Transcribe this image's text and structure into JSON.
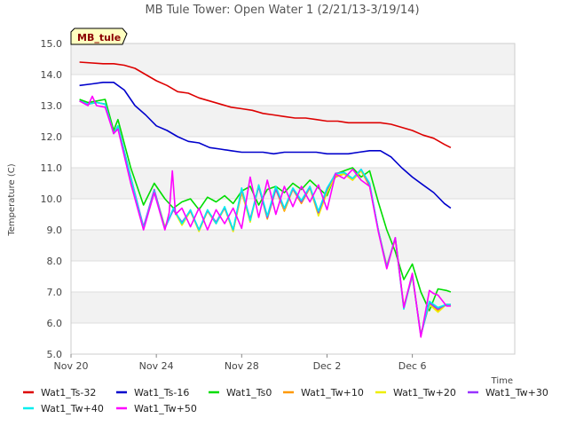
{
  "chart_data": {
    "type": "line",
    "title": "MB Tule Tower: Open Water 1 (2/21/13-3/19/14)",
    "xlabel": "Time",
    "ylabel": "Temperature (C)",
    "tag": "MB_tule",
    "ylim": [
      5.0,
      15.0
    ],
    "xlim": [
      0,
      20.8
    ],
    "yticks": [
      5.0,
      6.0,
      7.0,
      8.0,
      9.0,
      10.0,
      11.0,
      12.0,
      13.0,
      14.0,
      15.0
    ],
    "yticklabels": [
      "5.0",
      "6.0",
      "7.0",
      "8.0",
      "9.0",
      "10.0",
      "11.0",
      "12.0",
      "13.0",
      "14.0",
      "15.0"
    ],
    "xticks": [
      0,
      4,
      8,
      12,
      16
    ],
    "xticklabels": [
      "Nov 20",
      "Nov 24",
      "Nov 28",
      "Dec 2",
      "Dec 6"
    ],
    "grid": true,
    "legend_position": "bottom",
    "series": [
      {
        "name": "Wat1_Ts-32",
        "color": "#dd0000",
        "x": [
          0.4,
          1.5,
          2.0,
          2.5,
          3.0,
          3.5,
          4.0,
          4.5,
          5.0,
          5.5,
          6.0,
          6.5,
          7.0,
          7.5,
          8.0,
          8.5,
          9.0,
          9.5,
          10.0,
          10.5,
          11.0,
          11.5,
          12.0,
          12.5,
          13.0,
          13.5,
          14.0,
          14.5,
          15.0,
          15.5,
          16.0,
          16.5,
          17.0,
          17.5,
          17.8
        ],
        "values": [
          14.4,
          14.35,
          14.35,
          14.3,
          14.2,
          14.0,
          13.8,
          13.65,
          13.45,
          13.4,
          13.25,
          13.15,
          13.05,
          12.95,
          12.9,
          12.85,
          12.75,
          12.7,
          12.65,
          12.6,
          12.6,
          12.55,
          12.5,
          12.5,
          12.45,
          12.45,
          12.45,
          12.45,
          12.4,
          12.3,
          12.2,
          12.05,
          11.95,
          11.75,
          11.65
        ]
      },
      {
        "name": "Wat1_Ts-16",
        "color": "#0000cc",
        "x": [
          0.4,
          1.0,
          1.5,
          2.0,
          2.5,
          3.0,
          3.5,
          4.0,
          4.5,
          5.0,
          5.5,
          6.0,
          6.5,
          7.0,
          7.5,
          8.0,
          8.5,
          9.0,
          9.5,
          10.0,
          10.5,
          11.0,
          11.5,
          12.0,
          12.5,
          13.0,
          13.5,
          14.0,
          14.5,
          15.0,
          15.5,
          16.0,
          16.5,
          17.0,
          17.5,
          17.8
        ],
        "values": [
          13.65,
          13.7,
          13.75,
          13.75,
          13.5,
          13.0,
          12.7,
          12.35,
          12.2,
          12.0,
          11.85,
          11.8,
          11.65,
          11.6,
          11.55,
          11.5,
          11.5,
          11.5,
          11.45,
          11.5,
          11.5,
          11.5,
          11.5,
          11.45,
          11.45,
          11.45,
          11.5,
          11.55,
          11.55,
          11.35,
          11.0,
          10.7,
          10.45,
          10.2,
          9.85,
          9.7
        ]
      },
      {
        "name": "Wat1_Ts0",
        "color": "#00dd00",
        "x": [
          0.4,
          0.8,
          1.2,
          1.6,
          2.0,
          2.2,
          2.8,
          3.4,
          3.9,
          4.4,
          4.8,
          5.2,
          5.6,
          6.0,
          6.4,
          6.8,
          7.2,
          7.6,
          8.0,
          8.4,
          8.8,
          9.2,
          9.6,
          10.0,
          10.4,
          10.8,
          11.2,
          11.6,
          12.0,
          12.4,
          12.8,
          13.2,
          13.6,
          14.0,
          14.4,
          14.8,
          15.2,
          15.6,
          16.0,
          16.4,
          16.8,
          17.2,
          17.6,
          17.8
        ],
        "values": [
          13.2,
          13.1,
          13.15,
          13.2,
          12.2,
          12.55,
          11.0,
          9.8,
          10.5,
          10.0,
          9.7,
          9.9,
          10.0,
          9.65,
          10.05,
          9.9,
          10.1,
          9.85,
          10.25,
          10.4,
          9.8,
          10.3,
          10.4,
          10.2,
          10.5,
          10.3,
          10.6,
          10.35,
          10.1,
          10.8,
          10.9,
          11.0,
          10.7,
          10.9,
          9.9,
          9.0,
          8.3,
          7.4,
          7.9,
          7.0,
          6.4,
          7.1,
          7.05,
          7.0
        ]
      },
      {
        "name": "Wat1_Tw+10",
        "color": "#ff9900",
        "x": [
          0.4,
          0.8,
          1.2,
          1.6,
          2.0,
          2.2,
          2.8,
          3.4,
          3.9,
          4.4,
          4.8,
          5.2,
          5.6,
          6.0,
          6.4,
          6.8,
          7.2,
          7.6,
          8.0,
          8.4,
          8.8,
          9.2,
          9.6,
          10.0,
          10.4,
          10.8,
          11.2,
          11.6,
          12.0,
          12.4,
          12.8,
          13.2,
          13.6,
          14.0,
          14.4,
          14.8,
          15.2,
          15.6,
          16.0,
          16.4,
          16.8,
          17.2,
          17.6,
          17.8
        ],
        "values": [
          13.15,
          13.05,
          13.1,
          13.05,
          12.1,
          12.35,
          10.7,
          9.05,
          10.25,
          9.1,
          9.65,
          9.2,
          9.6,
          9.0,
          9.6,
          9.2,
          9.7,
          8.95,
          10.2,
          9.3,
          10.4,
          9.35,
          10.3,
          9.6,
          10.3,
          9.85,
          10.35,
          9.5,
          10.25,
          10.7,
          10.8,
          10.6,
          10.9,
          10.4,
          9.0,
          7.85,
          8.7,
          6.5,
          7.5,
          5.65,
          6.6,
          6.4,
          6.6,
          6.55
        ]
      },
      {
        "name": "Wat1_Tw+20",
        "color": "#eeee00",
        "x": [
          0.4,
          0.8,
          1.2,
          1.6,
          2.0,
          2.2,
          2.8,
          3.4,
          3.9,
          4.4,
          4.8,
          5.2,
          5.6,
          6.0,
          6.4,
          6.8,
          7.2,
          7.6,
          8.0,
          8.4,
          8.8,
          9.2,
          9.6,
          10.0,
          10.4,
          10.8,
          11.2,
          11.6,
          12.0,
          12.4,
          12.8,
          13.2,
          13.6,
          14.0,
          14.4,
          14.8,
          15.2,
          15.6,
          16.0,
          16.4,
          16.8,
          17.2,
          17.6,
          17.8
        ],
        "values": [
          13.15,
          13.05,
          13.1,
          13.05,
          12.1,
          12.35,
          10.7,
          9.08,
          10.28,
          9.1,
          9.65,
          9.15,
          9.6,
          8.95,
          9.6,
          9.25,
          9.7,
          8.95,
          10.25,
          9.25,
          10.45,
          9.4,
          10.35,
          9.65,
          10.3,
          9.9,
          10.35,
          9.45,
          10.2,
          10.75,
          10.8,
          10.6,
          10.9,
          10.45,
          9.0,
          7.8,
          8.72,
          6.55,
          7.52,
          5.62,
          6.6,
          6.35,
          6.6,
          6.55
        ]
      },
      {
        "name": "Wat1_Tw+30",
        "color": "#9933ff",
        "x": [
          0.4,
          0.8,
          1.2,
          1.6,
          2.0,
          2.2,
          2.8,
          3.4,
          3.9,
          4.4,
          4.8,
          5.2,
          5.6,
          6.0,
          6.4,
          6.8,
          7.2,
          7.6,
          8.0,
          8.4,
          8.8,
          9.2,
          9.6,
          10.0,
          10.4,
          10.8,
          11.2,
          11.6,
          12.0,
          12.4,
          12.8,
          13.2,
          13.6,
          14.0,
          14.4,
          14.8,
          15.2,
          15.6,
          16.0,
          16.4,
          16.8,
          17.2,
          17.6,
          17.8
        ],
        "values": [
          13.15,
          13.05,
          13.1,
          13.05,
          12.1,
          12.35,
          10.7,
          9.1,
          10.3,
          9.05,
          9.65,
          9.25,
          9.62,
          9.0,
          9.62,
          9.25,
          9.72,
          9.0,
          10.3,
          9.35,
          10.4,
          9.4,
          10.32,
          9.68,
          10.32,
          9.9,
          10.38,
          9.55,
          10.3,
          10.82,
          10.85,
          10.65,
          10.95,
          10.45,
          9.0,
          7.8,
          8.75,
          6.5,
          7.55,
          5.6,
          6.65,
          6.45,
          6.6,
          6.6
        ]
      },
      {
        "name": "Wat1_Tw+40",
        "color": "#00eeee",
        "x": [
          0.4,
          0.8,
          1.2,
          1.6,
          2.0,
          2.2,
          2.8,
          3.4,
          3.9,
          4.4,
          4.8,
          5.2,
          5.6,
          6.0,
          6.4,
          6.8,
          7.2,
          7.6,
          8.0,
          8.4,
          8.8,
          9.2,
          9.6,
          10.0,
          10.4,
          10.8,
          11.2,
          11.6,
          12.0,
          12.4,
          12.8,
          13.2,
          13.6,
          14.0,
          14.4,
          14.8,
          15.2,
          15.6,
          16.0,
          16.4,
          16.8,
          17.2,
          17.6,
          17.8
        ],
        "values": [
          13.15,
          13.05,
          13.1,
          13.05,
          12.1,
          12.35,
          10.7,
          9.05,
          10.25,
          9.05,
          9.7,
          9.2,
          9.65,
          9.0,
          9.65,
          9.2,
          9.75,
          9.0,
          10.35,
          9.3,
          10.45,
          9.45,
          10.4,
          9.7,
          10.35,
          9.95,
          10.4,
          9.6,
          10.35,
          10.8,
          10.85,
          10.65,
          10.95,
          10.5,
          9.0,
          7.8,
          8.75,
          6.45,
          7.55,
          5.6,
          6.7,
          6.5,
          6.6,
          6.6
        ]
      },
      {
        "name": "Wat1_Tw+50",
        "color": "#ff00ff",
        "x": [
          0.4,
          0.8,
          1.0,
          1.2,
          1.6,
          2.0,
          2.2,
          2.8,
          3.4,
          3.9,
          4.4,
          4.6,
          4.75,
          4.9,
          5.2,
          5.6,
          6.0,
          6.4,
          6.8,
          7.2,
          7.6,
          8.0,
          8.4,
          8.8,
          9.2,
          9.6,
          10.0,
          10.4,
          10.8,
          11.2,
          11.6,
          12.0,
          12.4,
          12.8,
          13.2,
          13.6,
          14.0,
          14.4,
          14.8,
          15.2,
          15.6,
          16.0,
          16.4,
          16.8,
          17.0,
          17.2,
          17.6,
          17.8
        ],
        "values": [
          13.15,
          13.0,
          13.3,
          13.0,
          12.95,
          12.1,
          12.25,
          10.5,
          9.0,
          10.2,
          9.0,
          9.55,
          10.9,
          9.5,
          9.7,
          9.1,
          9.7,
          9.0,
          9.65,
          9.2,
          9.7,
          9.05,
          10.7,
          9.4,
          10.6,
          9.5,
          10.4,
          9.75,
          10.4,
          9.9,
          10.45,
          9.65,
          10.8,
          10.65,
          10.95,
          10.6,
          10.4,
          8.95,
          7.75,
          8.75,
          6.5,
          7.6,
          5.55,
          7.05,
          6.95,
          6.9,
          6.55,
          6.55
        ]
      }
    ]
  }
}
